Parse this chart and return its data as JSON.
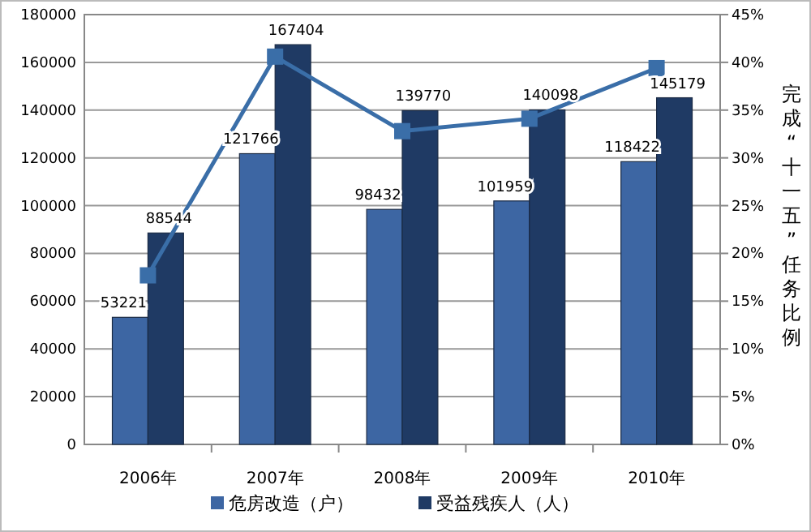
{
  "chart_data": {
    "type": "bar",
    "categories": [
      "2006年",
      "2007年",
      "2008年",
      "2009年",
      "2010年"
    ],
    "series": [
      {
        "name": "危房改造（户）",
        "color": "#3d66a3",
        "values": [
          53221,
          121766,
          98432,
          101959,
          118422
        ],
        "value_labels": [
          "53221",
          "121766",
          "98432",
          "101959",
          "118422"
        ]
      },
      {
        "name": "受益残疾人（人）",
        "color": "#1f3a64",
        "values": [
          88544,
          167404,
          139770,
          140098,
          145179
        ],
        "value_labels": [
          "88544",
          "167404",
          "139770",
          "140098",
          "145179"
        ]
      },
      {
        "type": "line",
        "axis": "y2",
        "color": "#3a6ea8",
        "marker": "square",
        "values": [
          17.7,
          40.6,
          32.8,
          34.1,
          39.4
        ]
      }
    ],
    "ylim": [
      0,
      180000
    ],
    "yticks": [
      0,
      20000,
      40000,
      60000,
      80000,
      100000,
      120000,
      140000,
      160000,
      180000
    ],
    "y2lim": [
      0,
      45
    ],
    "y2ticks": [
      {
        "value": 0,
        "label": "0%"
      },
      {
        "value": 5,
        "label": "5%"
      },
      {
        "value": 10,
        "label": "10%"
      },
      {
        "value": 15,
        "label": "15%"
      },
      {
        "value": 20,
        "label": "20%"
      },
      {
        "value": 25,
        "label": "25%"
      },
      {
        "value": 30,
        "label": "30%"
      },
      {
        "value": 35,
        "label": "35%"
      },
      {
        "value": 40,
        "label": "40%"
      },
      {
        "value": 45,
        "label": "45%"
      }
    ],
    "y2label": "完成“十一五”任务比例",
    "grid": "y",
    "legend": "bottom"
  }
}
